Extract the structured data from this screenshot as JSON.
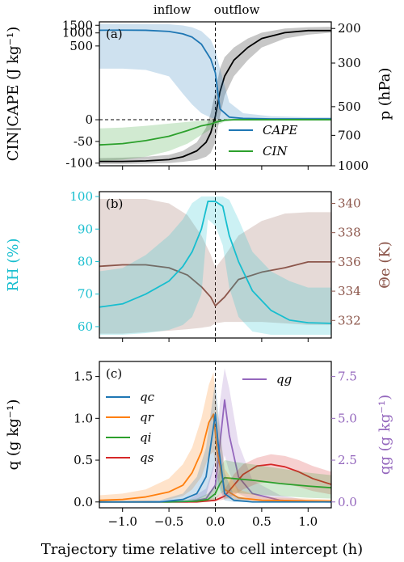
{
  "figure": {
    "xlabel": "Trajectory time relative to cell intercept (h)",
    "top_labels": [
      "inflow",
      "outflow"
    ],
    "xticks": [
      "−1.0",
      "−0.5",
      "0.0",
      "0.5",
      "1.0"
    ]
  },
  "chart_data": [
    {
      "type": "line",
      "panel_label": "(a)",
      "xlim": [
        -1.25,
        1.25
      ],
      "ylabel_left": "CIN|CAPE (J kg⁻¹)",
      "ylabel_right": "p (hPa)",
      "left_ticks": [
        "1500",
        "1000",
        "500",
        "0",
        "-50",
        "-100"
      ],
      "right_ticks": [
        "200",
        "300",
        "500",
        "700",
        "1000"
      ],
      "left_scale": "symlog",
      "right_scale": "log (inverted)",
      "legend_position": "lower-right",
      "series": [
        {
          "name": "CAPE",
          "color": "#1f77b4",
          "x": [
            -1.25,
            -1.0,
            -0.75,
            -0.5,
            -0.35,
            -0.25,
            -0.15,
            -0.05,
            0.0,
            0.05,
            0.15,
            0.3,
            0.6,
            1.0,
            1.25
          ],
          "y": [
            1150,
            1160,
            1150,
            1080,
            950,
            800,
            550,
            250,
            120,
            25,
            6,
            3,
            2,
            2,
            2
          ],
          "band_low": [
            150,
            150,
            140,
            100,
            60,
            35,
            15,
            5,
            2,
            1,
            0,
            0,
            0,
            0,
            0
          ],
          "band_high": [
            1620,
            1620,
            1610,
            1580,
            1480,
            1350,
            1100,
            700,
            400,
            150,
            40,
            15,
            8,
            6,
            6
          ]
        },
        {
          "name": "CIN",
          "color": "#2ca02c",
          "x": [
            -1.25,
            -1.0,
            -0.75,
            -0.5,
            -0.3,
            -0.15,
            -0.05,
            0.0,
            0.1,
            0.2,
            0.4,
            0.7,
            1.0,
            1.25
          ],
          "y": [
            -58,
            -55,
            -48,
            -38,
            -25,
            -14,
            -10,
            -6,
            -1,
            0,
            0,
            0,
            0,
            0
          ],
          "band_low": [
            -95,
            -92,
            -85,
            -72,
            -55,
            -35,
            -22,
            -14,
            -4,
            -1,
            0,
            0,
            0,
            0
          ],
          "band_high": [
            -20,
            -18,
            -14,
            -9,
            -5,
            -2,
            -1,
            0,
            0,
            0,
            0,
            0,
            0,
            0
          ]
        },
        {
          "name": "",
          "color": "#000000",
          "axis": "right",
          "x": [
            -1.25,
            -1.0,
            -0.75,
            -0.5,
            -0.35,
            -0.2,
            -0.1,
            -0.05,
            0.0,
            0.05,
            0.1,
            0.2,
            0.35,
            0.5,
            0.75,
            1.0,
            1.25
          ],
          "y": [
            950,
            950,
            945,
            930,
            900,
            840,
            760,
            680,
            560,
            420,
            350,
            290,
            250,
            225,
            210,
            205,
            205
          ],
          "band_low": [
            980,
            980,
            975,
            968,
            955,
            935,
            900,
            860,
            760,
            560,
            440,
            350,
            290,
            250,
            225,
            215,
            210
          ],
          "band_high": [
            915,
            910,
            900,
            880,
            840,
            760,
            640,
            540,
            420,
            320,
            280,
            250,
            225,
            210,
            200,
            197,
            196
          ]
        }
      ]
    },
    {
      "type": "line",
      "panel_label": "(b)",
      "xlim": [
        -1.25,
        1.25
      ],
      "ylabel_left": "RH (%)",
      "ylabel_right": "Θe (K)",
      "left_ticks": [
        "100",
        "90",
        "80",
        "70",
        "60"
      ],
      "right_ticks": [
        "340",
        "338",
        "336",
        "334",
        "332"
      ],
      "ylim_left": [
        56.5,
        101.5
      ],
      "ylim_right": [
        330.8,
        340.8
      ],
      "series": [
        {
          "name": "",
          "axis": "left",
          "color": "#17becf",
          "x": [
            -1.25,
            -1.0,
            -0.75,
            -0.5,
            -0.35,
            -0.25,
            -0.15,
            -0.08,
            0.0,
            0.08,
            0.15,
            0.25,
            0.4,
            0.6,
            0.8,
            1.0,
            1.25
          ],
          "y": [
            66,
            67,
            70,
            74,
            78.5,
            83,
            90,
            98.5,
            98.5,
            97,
            88,
            80,
            71,
            65,
            62,
            61.2,
            61
          ],
          "band_low": [
            57.5,
            57.5,
            58,
            59,
            60.5,
            63,
            70,
            93,
            91,
            85,
            72,
            63,
            58.5,
            57.5,
            57.5,
            57.5,
            57.5
          ],
          "band_high": [
            77,
            78,
            82,
            88,
            93,
            98,
            100,
            100,
            100,
            100,
            99,
            93,
            83,
            77,
            74,
            72,
            72
          ]
        },
        {
          "name": "",
          "axis": "right",
          "color": "#8c564b",
          "x": [
            -1.25,
            -1.0,
            -0.75,
            -0.5,
            -0.3,
            -0.15,
            -0.05,
            0.0,
            0.1,
            0.25,
            0.5,
            0.75,
            1.0,
            1.25
          ],
          "y": [
            335.7,
            335.8,
            335.8,
            335.6,
            335.1,
            334.3,
            333.6,
            333.0,
            333.6,
            334.8,
            335.3,
            335.6,
            336.0,
            336.0
          ],
          "band_low": [
            331.1,
            331.1,
            331.2,
            331.3,
            331.4,
            331.5,
            331.6,
            331.8,
            331.9,
            331.9,
            331.9,
            331.8,
            331.7,
            331.7
          ],
          "band_high": [
            340.3,
            340.3,
            340.3,
            340.0,
            339.2,
            337.8,
            336.5,
            335.6,
            336.4,
            337.8,
            338.8,
            339.3,
            339.4,
            339.4
          ]
        }
      ]
    },
    {
      "type": "line",
      "panel_label": "(c)",
      "xlim": [
        -1.25,
        1.25
      ],
      "ylabel_left": "q (g kg⁻¹)",
      "ylabel_right": "qg (g kg⁻¹)",
      "left_ticks": [
        "1.5",
        "1.0",
        "0.5",
        "0.0"
      ],
      "right_ticks": [
        "7.5",
        "5.0",
        "2.5",
        "0.0"
      ],
      "ylim_left": [
        -0.07,
        1.68
      ],
      "ylim_right": [
        -0.35,
        8.4
      ],
      "legend_position": "upper-left",
      "series": [
        {
          "name": "qc",
          "axis": "left",
          "color": "#1f77b4",
          "x": [
            -1.25,
            -0.6,
            -0.35,
            -0.2,
            -0.1,
            -0.02,
            0.0,
            0.03,
            0.1,
            0.2,
            0.4,
            1.25
          ],
          "y": [
            0,
            0,
            0.03,
            0.1,
            0.3,
            0.9,
            1.05,
            0.7,
            0.1,
            0.02,
            0,
            0
          ],
          "band_low": [
            0,
            0,
            0,
            0.02,
            0.08,
            0.4,
            0.5,
            0.2,
            0.02,
            0,
            0,
            0
          ],
          "band_high": [
            0,
            0.02,
            0.1,
            0.3,
            0.65,
            1.3,
            1.45,
            1.1,
            0.35,
            0.08,
            0.01,
            0
          ]
        },
        {
          "name": "qr",
          "axis": "left",
          "color": "#ff7f0e",
          "x": [
            -1.25,
            -1.0,
            -0.75,
            -0.5,
            -0.35,
            -0.25,
            -0.15,
            -0.07,
            -0.02,
            0.02,
            0.1,
            0.25,
            0.5,
            1.25
          ],
          "y": [
            0.02,
            0.03,
            0.06,
            0.12,
            0.2,
            0.35,
            0.6,
            0.95,
            1.05,
            0.6,
            0.15,
            0.05,
            0.02,
            0.01
          ],
          "band_low": [
            0,
            0,
            0.01,
            0.03,
            0.07,
            0.15,
            0.3,
            0.55,
            0.6,
            0.3,
            0.05,
            0.01,
            0,
            0
          ],
          "band_high": [
            0.08,
            0.1,
            0.15,
            0.28,
            0.45,
            0.65,
            1.0,
            1.4,
            1.55,
            1.1,
            0.4,
            0.15,
            0.06,
            0.03
          ]
        },
        {
          "name": "qi",
          "axis": "left",
          "color": "#2ca02c",
          "x": [
            -1.25,
            -0.5,
            -0.2,
            -0.08,
            0.0,
            0.05,
            0.1,
            0.2,
            0.4,
            0.7,
            1.0,
            1.25
          ],
          "y": [
            0,
            0,
            0.01,
            0.03,
            0.1,
            0.22,
            0.29,
            0.28,
            0.26,
            0.22,
            0.19,
            0.17
          ],
          "band_low": [
            0,
            0,
            0,
            0.01,
            0.03,
            0.1,
            0.13,
            0.11,
            0.09,
            0.07,
            0.05,
            0.04
          ],
          "band_high": [
            0,
            0.01,
            0.04,
            0.1,
            0.2,
            0.4,
            0.5,
            0.48,
            0.45,
            0.4,
            0.35,
            0.32
          ]
        },
        {
          "name": "qs",
          "axis": "left",
          "color": "#d62728",
          "x": [
            -1.25,
            -0.2,
            0.0,
            0.1,
            0.2,
            0.3,
            0.45,
            0.6,
            0.75,
            0.9,
            1.05,
            1.25
          ],
          "y": [
            0,
            0,
            0.02,
            0.07,
            0.2,
            0.33,
            0.43,
            0.45,
            0.42,
            0.36,
            0.28,
            0.21
          ],
          "band_low": [
            0,
            0,
            0.01,
            0.03,
            0.08,
            0.15,
            0.22,
            0.24,
            0.22,
            0.18,
            0.13,
            0.09
          ],
          "band_high": [
            0,
            0.01,
            0.05,
            0.15,
            0.33,
            0.45,
            0.53,
            0.57,
            0.55,
            0.5,
            0.43,
            0.36
          ]
        },
        {
          "name": "qg",
          "axis": "right",
          "color": "#9467bd",
          "x": [
            -1.25,
            -0.3,
            -0.1,
            0.0,
            0.05,
            0.1,
            0.15,
            0.25,
            0.4,
            0.7,
            1.0,
            1.25
          ],
          "y": [
            0,
            0,
            0.2,
            1.0,
            3.5,
            6.1,
            4.0,
            1.5,
            0.5,
            0.1,
            0.02,
            0
          ],
          "band_low": [
            0,
            0,
            0.05,
            0.3,
            1.5,
            2.8,
            1.8,
            0.5,
            0.1,
            0,
            0,
            0
          ],
          "band_high": [
            0,
            0.1,
            0.8,
            2.5,
            6.0,
            8.0,
            6.8,
            3.5,
            1.3,
            0.4,
            0.1,
            0.05
          ]
        }
      ]
    }
  ]
}
